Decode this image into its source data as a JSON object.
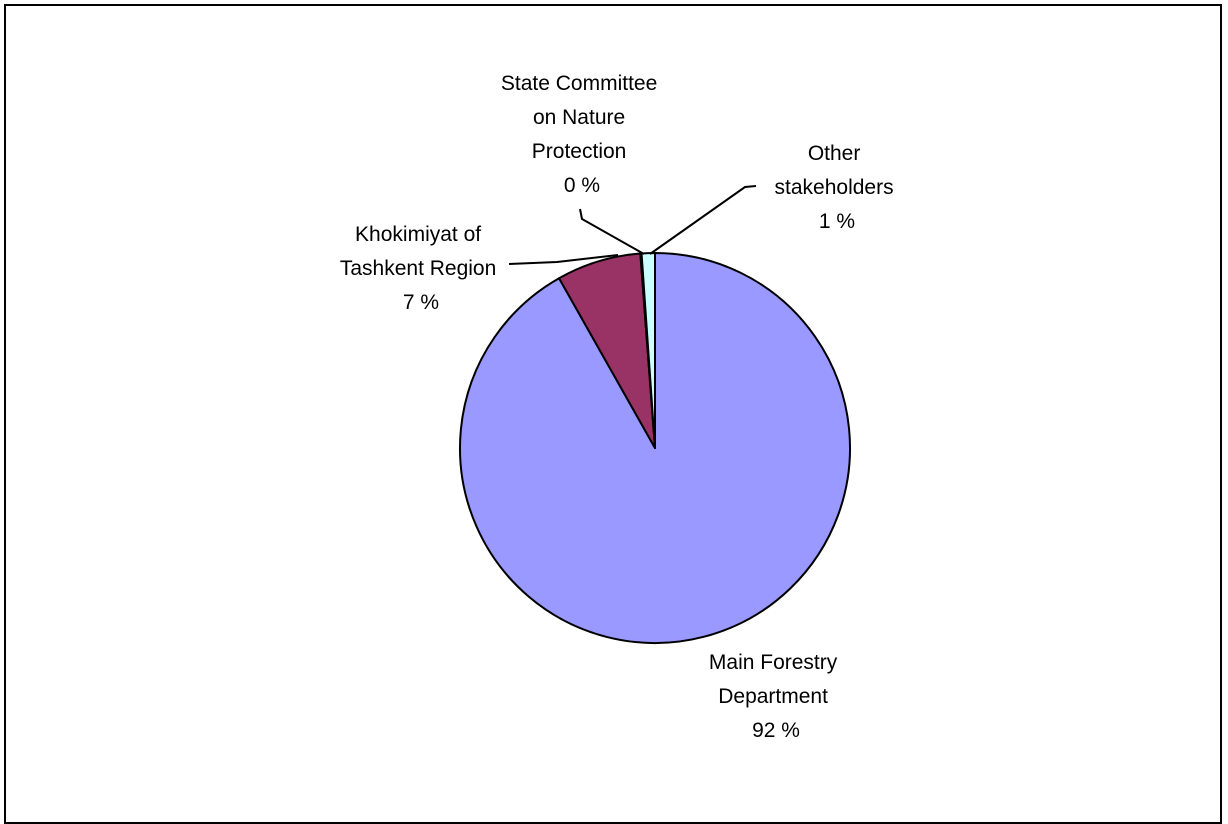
{
  "chart_data": {
    "type": "pie",
    "slices": [
      {
        "label_lines": [
          "Main Forestry",
          "Department"
        ],
        "percent_text": "92 %",
        "value": 92,
        "color": "#9999FF"
      },
      {
        "label_lines": [
          "Khokimiyat of",
          "Tashkent Region"
        ],
        "percent_text": "7 %",
        "value": 7,
        "color": "#993366"
      },
      {
        "label_lines": [
          "State Committee",
          "on Nature",
          "Protection"
        ],
        "percent_text": "0 %",
        "value": 0.1,
        "color": "#FFFFCC"
      },
      {
        "label_lines": [
          "Other",
          "stakeholders"
        ],
        "percent_text": "1 %",
        "value": 1.1,
        "color": "#CCFFFF"
      }
    ]
  }
}
